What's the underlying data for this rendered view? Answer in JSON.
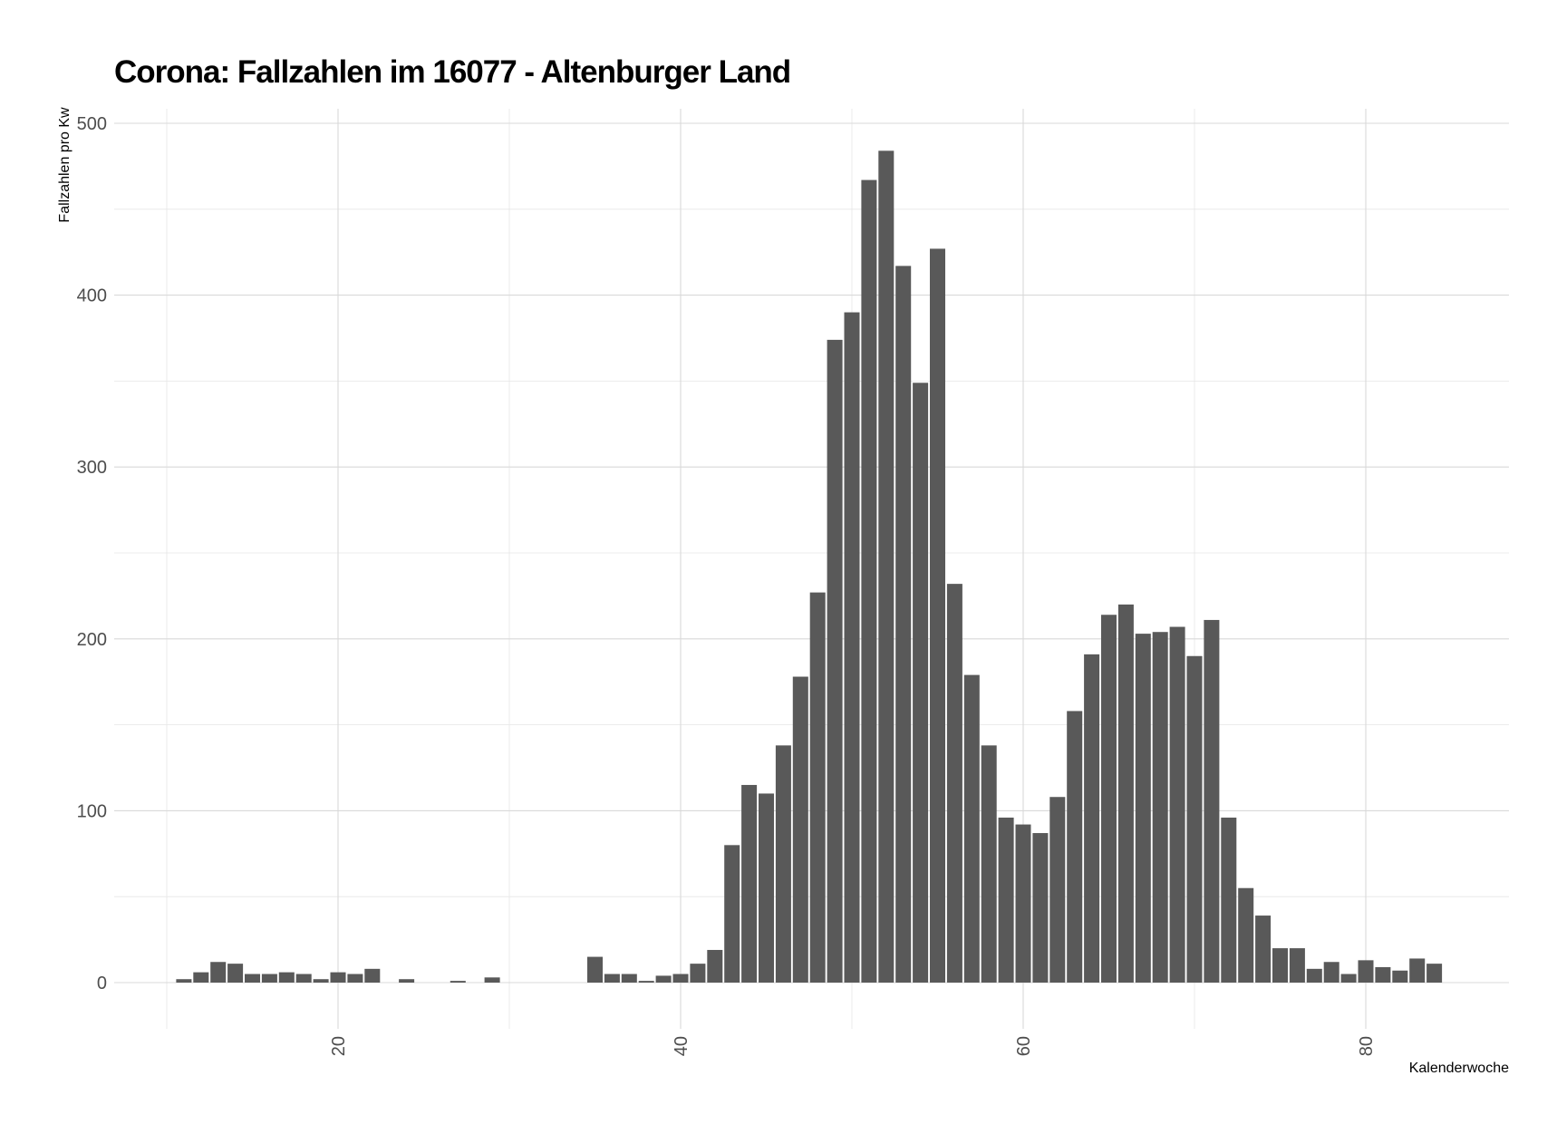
{
  "chart_data": {
    "type": "bar",
    "title": "Corona: Fallzahlen im 16077 - Altenburger Land",
    "xlabel": "Kalenderwoche",
    "ylabel": "Fallzahlen pro Kw",
    "xlim": [
      8,
      89
    ],
    "ylim": [
      -8,
      510
    ],
    "x_ticks": [
      20,
      40,
      60,
      80
    ],
    "y_ticks": [
      0,
      100,
      200,
      300,
      400,
      500
    ],
    "grid": true,
    "bar_color": "#595959",
    "x": [
      11,
      12,
      13,
      14,
      15,
      16,
      17,
      18,
      19,
      20,
      21,
      22,
      24,
      27,
      29,
      35,
      36,
      37,
      38,
      39,
      40,
      41,
      42,
      43,
      44,
      45,
      46,
      47,
      48,
      49,
      50,
      51,
      52,
      53,
      54,
      55,
      56,
      57,
      58,
      59,
      60,
      61,
      62,
      63,
      64,
      65,
      66,
      67,
      68,
      69,
      70,
      71,
      72,
      73,
      74,
      75,
      76,
      77,
      78,
      79,
      80,
      81,
      82,
      83,
      84
    ],
    "values": [
      2,
      6,
      12,
      11,
      5,
      5,
      6,
      5,
      2,
      6,
      5,
      8,
      2,
      1,
      3,
      15,
      5,
      5,
      1,
      4,
      5,
      11,
      19,
      80,
      115,
      110,
      138,
      178,
      227,
      374,
      390,
      467,
      484,
      417,
      349,
      427,
      232,
      179,
      138,
      96,
      92,
      87,
      108,
      158,
      191,
      214,
      220,
      203,
      204,
      207,
      190,
      211,
      96,
      55,
      39,
      20,
      20,
      8,
      12,
      5,
      13,
      9,
      7,
      14,
      11
    ]
  }
}
